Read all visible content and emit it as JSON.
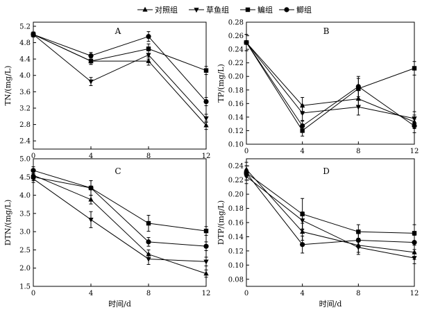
{
  "legend": {
    "entries": [
      {
        "label": "对照组",
        "marker": "triangle-up"
      },
      {
        "label": "草鱼组",
        "marker": "triangle-down"
      },
      {
        "label": "鳊组",
        "marker": "square"
      },
      {
        "label": "鲫组",
        "marker": "circle"
      }
    ],
    "placement": "top-center"
  },
  "chart_data": [
    {
      "type": "line",
      "panel": "A",
      "title": "A",
      "xlabel": "",
      "ylabel": "TN/(mg/L)",
      "x": [
        0,
        4,
        8,
        12
      ],
      "xlim": [
        0,
        12
      ],
      "ylim": [
        2.2,
        5.3
      ],
      "xticks": [
        0,
        4,
        8,
        12
      ],
      "yticks": [
        2.4,
        2.8,
        3.2,
        3.6,
        4.0,
        4.4,
        4.8,
        5.2
      ],
      "ytick_labels": [
        "2.4",
        "2.8",
        "3.2",
        "3.6",
        "4.0",
        "4.4",
        "4.8",
        "5.2"
      ],
      "grid": false,
      "series": [
        {
          "name": "对照组",
          "marker": "triangle-up",
          "values": [
            5.0,
            4.35,
            4.35,
            2.78
          ],
          "errors": [
            0.06,
            0.08,
            0.1,
            0.1
          ]
        },
        {
          "name": "草鱼组",
          "marker": "triangle-down",
          "values": [
            5.0,
            3.85,
            4.5,
            2.95
          ],
          "errors": [
            0.06,
            0.1,
            0.1,
            0.1
          ]
        },
        {
          "name": "鳊组",
          "marker": "square",
          "values": [
            5.0,
            4.35,
            4.65,
            4.12
          ],
          "errors": [
            0.06,
            0.08,
            0.12,
            0.1
          ]
        },
        {
          "name": "鲫组",
          "marker": "circle",
          "values": [
            5.0,
            4.48,
            4.95,
            3.36
          ],
          "errors": [
            0.06,
            0.08,
            0.12,
            0.1
          ]
        }
      ]
    },
    {
      "type": "line",
      "panel": "B",
      "title": "B",
      "xlabel": "",
      "ylabel": "TP/(mg/L)",
      "x": [
        0,
        4,
        8,
        12
      ],
      "xlim": [
        0,
        12
      ],
      "ylim": [
        0.1,
        0.28
      ],
      "xticks": [
        0,
        4,
        8,
        12
      ],
      "yticks": [
        0.1,
        0.12,
        0.14,
        0.16,
        0.18,
        0.2,
        0.22,
        0.24,
        0.26,
        0.28
      ],
      "ytick_labels": [
        "0.10",
        "0.12",
        "0.14",
        "0.16",
        "0.18",
        "0.20",
        "0.22",
        "0.24",
        "0.26",
        "0.28"
      ],
      "grid": false,
      "series": [
        {
          "name": "对照组",
          "marker": "triangle-up",
          "values": [
            0.25,
            0.157,
            0.167,
            0.133
          ],
          "errors": [
            0.012,
            0.012,
            0.012,
            0.01
          ]
        },
        {
          "name": "草鱼组",
          "marker": "triangle-down",
          "values": [
            0.25,
            0.146,
            0.155,
            0.138
          ],
          "errors": [
            0.012,
            0.012,
            0.012,
            0.01
          ]
        },
        {
          "name": "鳊组",
          "marker": "square",
          "values": [
            0.25,
            0.12,
            0.182,
            0.212
          ],
          "errors": [
            0.012,
            0.008,
            0.015,
            0.01
          ]
        },
        {
          "name": "鲫组",
          "marker": "circle",
          "values": [
            0.25,
            0.127,
            0.185,
            0.127
          ],
          "errors": [
            0.012,
            0.008,
            0.015,
            0.01
          ]
        }
      ]
    },
    {
      "type": "line",
      "panel": "C",
      "title": "C",
      "xlabel": "时间/d",
      "ylabel": "DTN/(mg/L)",
      "x": [
        0,
        4,
        8,
        12
      ],
      "xlim": [
        0,
        12
      ],
      "ylim": [
        1.5,
        5.0
      ],
      "xticks": [
        0,
        4,
        8,
        12
      ],
      "yticks": [
        1.5,
        2.0,
        2.5,
        3.0,
        3.5,
        4.0,
        4.5,
        5.0
      ],
      "ytick_labels": [
        "1.5",
        "2.0",
        "2.5",
        "3.0",
        "3.5",
        "4.0",
        "4.5",
        "5.0"
      ],
      "grid": false,
      "series": [
        {
          "name": "对照组",
          "marker": "triangle-up",
          "values": [
            4.55,
            3.88,
            2.38,
            1.85
          ],
          "errors": [
            0.1,
            0.12,
            0.12,
            0.1
          ]
        },
        {
          "name": "草鱼组",
          "marker": "triangle-down",
          "values": [
            4.45,
            3.33,
            2.25,
            2.18
          ],
          "errors": [
            0.1,
            0.22,
            0.15,
            0.12
          ]
        },
        {
          "name": "鳊组",
          "marker": "square",
          "values": [
            4.5,
            4.2,
            3.23,
            3.02
          ],
          "errors": [
            0.1,
            0.2,
            0.22,
            0.12
          ]
        },
        {
          "name": "鲫组",
          "marker": "circle",
          "values": [
            4.68,
            4.2,
            2.72,
            2.6
          ],
          "errors": [
            0.1,
            0.2,
            0.12,
            0.12
          ]
        }
      ]
    },
    {
      "type": "line",
      "panel": "D",
      "title": "D",
      "xlabel": "时间/d",
      "ylabel": "DTP/(mg/L)",
      "x": [
        0,
        4,
        8,
        12
      ],
      "xlim": [
        0,
        12
      ],
      "ylim": [
        0.07,
        0.25
      ],
      "xticks": [
        0,
        4,
        8,
        12
      ],
      "yticks": [
        0.08,
        0.1,
        0.12,
        0.14,
        0.16,
        0.18,
        0.2,
        0.22,
        0.24
      ],
      "ytick_labels": [
        "0.08",
        "0.10",
        "0.12",
        "0.14",
        "0.16",
        "0.18",
        "0.20",
        "0.22",
        "0.24"
      ],
      "grid": false,
      "series": [
        {
          "name": "对照组",
          "marker": "triangle-up",
          "values": [
            0.235,
            0.147,
            0.128,
            0.118
          ],
          "errors": [
            0.01,
            0.012,
            0.01,
            0.01
          ]
        },
        {
          "name": "草鱼组",
          "marker": "triangle-down",
          "values": [
            0.225,
            0.163,
            0.125,
            0.11
          ],
          "errors": [
            0.01,
            0.012,
            0.01,
            0.008
          ]
        },
        {
          "name": "鳊组",
          "marker": "square",
          "values": [
            0.23,
            0.172,
            0.147,
            0.145
          ],
          "errors": [
            0.01,
            0.022,
            0.01,
            0.012
          ]
        },
        {
          "name": "鲫组",
          "marker": "circle",
          "values": [
            0.23,
            0.129,
            0.135,
            0.132
          ],
          "errors": [
            0.01,
            0.012,
            0.01,
            0.01
          ]
        }
      ]
    }
  ]
}
